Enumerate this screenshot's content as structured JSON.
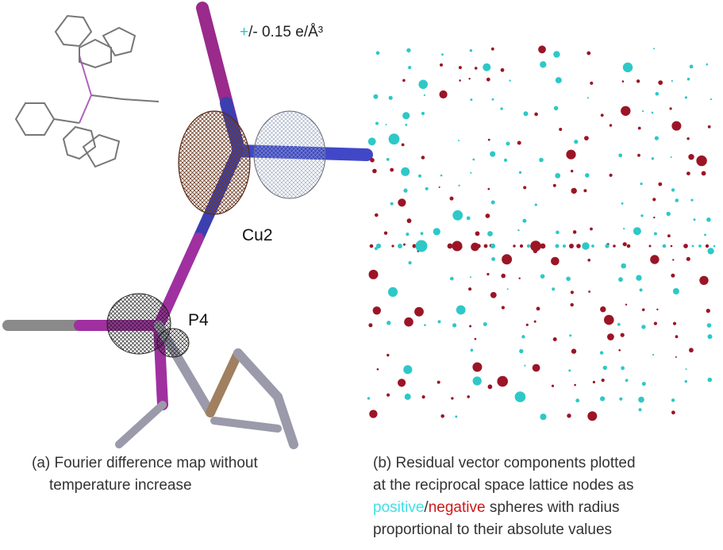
{
  "panel_a": {
    "legend": {
      "sign": "+",
      "text": "/- 0.15 e/Å³"
    },
    "atom_labels": [
      "Cu2",
      "P4"
    ],
    "caption": [
      "(a) Fourier difference map without",
      "temperature increase"
    ]
  },
  "panel_b": {
    "caption": {
      "line1": "(b) Residual vector components plotted",
      "line2": "at the reciprocal space lattice nodes as",
      "positive": "positive",
      "slash": "/",
      "negative": "negative",
      "line3_rest": " spheres with radius",
      "line4": "proportional to their absolute values"
    }
  }
}
